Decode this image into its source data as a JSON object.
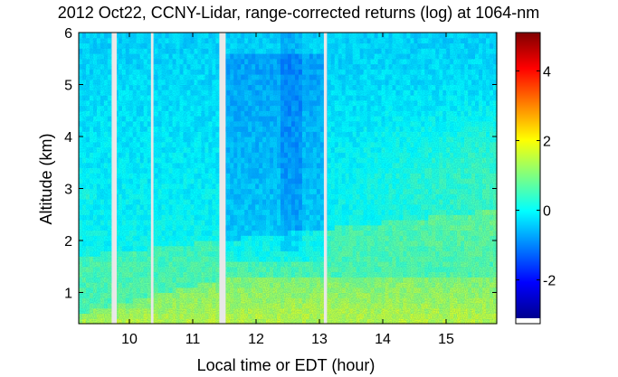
{
  "chart_data": {
    "type": "heatmap",
    "title": "2012 Oct22, CCNY-Lidar, range-corrected returns (log) at 1064-nm",
    "xlabel": "Local time or EDT (hour)",
    "ylabel": "Altitude (km)",
    "xlim": [
      9.2,
      15.8
    ],
    "ylim": [
      0.4,
      6.0
    ],
    "x_ticks": [
      "10",
      "11",
      "12",
      "13",
      "14",
      "15"
    ],
    "y_ticks": [
      "1",
      "2",
      "3",
      "4",
      "5",
      "6"
    ],
    "colorbar": {
      "colormap": "jet",
      "range": [
        -3.1,
        5.1
      ],
      "ticks": [
        "-2",
        "0",
        "2",
        "4"
      ]
    },
    "data_gaps_hours": [
      [
        9.72,
        9.8
      ],
      [
        10.34,
        10.38
      ],
      [
        11.42,
        11.52
      ],
      [
        13.07,
        13.12
      ]
    ],
    "layers_km": [
      {
        "name": "",
        "top_start": 0.6,
        "top_end": 1.3,
        "mean_value": 1.6
      },
      {
        "name": "",
        "top_start": 1.7,
        "top_end": 2.6,
        "mean_value": 0.9
      }
    ]
  }
}
